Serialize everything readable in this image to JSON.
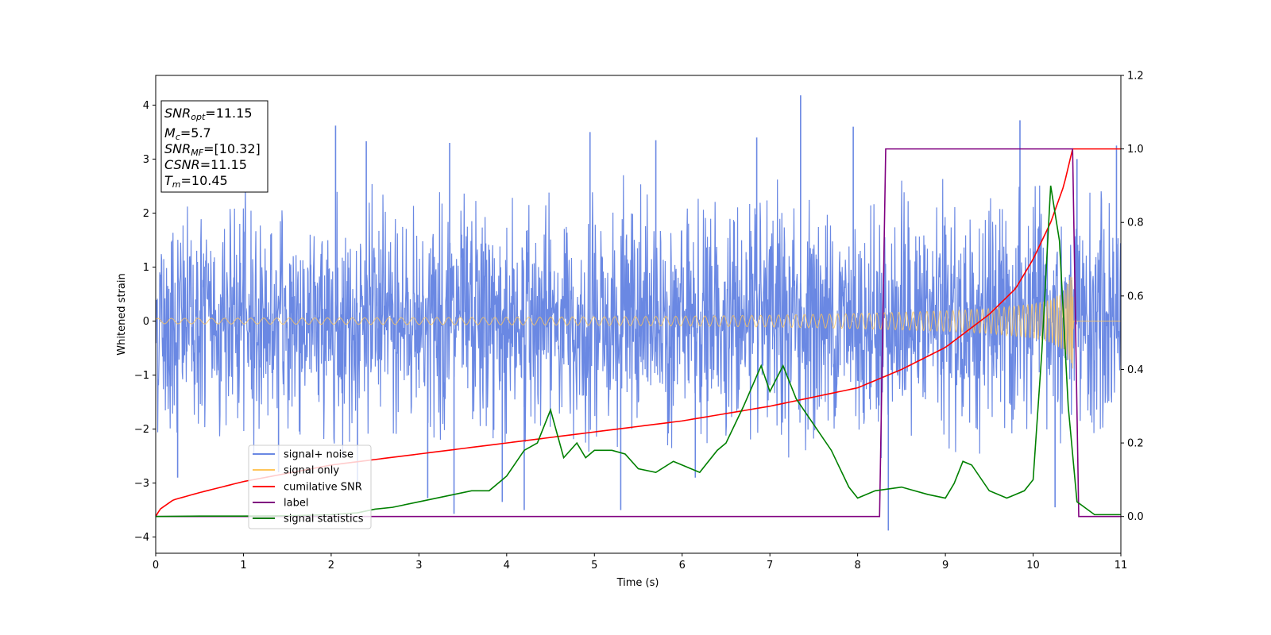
{
  "chart_data": {
    "type": "line",
    "xlabel": "Time (s)",
    "ylabel": "Whitened strain",
    "xlim": [
      0,
      11
    ],
    "ylim": [
      -4.3,
      4.55
    ],
    "ylim_right": [
      -0.1,
      1.2
    ],
    "x_ticks": [
      "0",
      "1",
      "2",
      "3",
      "4",
      "5",
      "6",
      "7",
      "8",
      "9",
      "10",
      "11"
    ],
    "y_ticks": [
      "−4",
      "−3",
      "−2",
      "−1",
      "0",
      "1",
      "2",
      "3",
      "4"
    ],
    "y_ticks_right": [
      "0.0",
      "0.2",
      "0.4",
      "0.6",
      "0.8",
      "1.0",
      "1.2"
    ],
    "legend_position": "lower-left",
    "annotation": {
      "lines": [
        {
          "symbol": "SNR",
          "sub": "opt",
          "value": "=11.15"
        },
        {
          "symbol": "M",
          "sub": "c",
          "value": "=5.7"
        },
        {
          "symbol": "SNR",
          "sub": "MF",
          "value": "=[10.32]"
        },
        {
          "symbol": "CSNR",
          "sub": "",
          "value": "=11.15"
        },
        {
          "symbol": "T",
          "sub": "m",
          "value": "=10.45"
        }
      ]
    },
    "series": [
      {
        "name": "signal+ noise",
        "color": "#6a88e3",
        "axis": "left",
        "kind": "noise",
        "sigma": 1.0,
        "envelope": {
          "x": [
            0,
            2,
            4,
            6,
            8,
            9,
            10,
            10.45,
            11
          ],
          "upper": [
            2.7,
            2.7,
            2.8,
            2.7,
            2.8,
            2.8,
            2.8,
            3.0,
            2.7
          ],
          "lower": [
            -2.5,
            -2.6,
            -2.6,
            -2.5,
            -2.6,
            -2.7,
            -2.7,
            -3.2,
            -2.6
          ]
        },
        "peaks": [
          [
            2.05,
            3.62
          ],
          [
            2.4,
            3.33
          ],
          [
            3.35,
            3.3
          ],
          [
            4.95,
            3.5
          ],
          [
            5.7,
            3.35
          ],
          [
            6.85,
            3.4
          ],
          [
            7.35,
            4.18
          ],
          [
            7.95,
            3.6
          ],
          [
            9.85,
            3.72
          ],
          [
            10.5,
            3.0
          ],
          [
            10.95,
            3.25
          ]
        ],
        "troughs": [
          [
            0.25,
            -2.9
          ],
          [
            1.4,
            -2.8
          ],
          [
            2.3,
            -3.05
          ],
          [
            3.1,
            -3.28
          ],
          [
            3.4,
            -3.57
          ],
          [
            3.95,
            -3.35
          ],
          [
            4.2,
            -3.5
          ],
          [
            5.3,
            -3.5
          ],
          [
            6.15,
            -2.9
          ],
          [
            8.35,
            -3.88
          ],
          [
            10.25,
            -3.45
          ]
        ]
      },
      {
        "name": "signal only",
        "color": "#ffc65a",
        "axis": "left",
        "kind": "chirp",
        "amplitude": {
          "x": [
            0,
            2,
            4,
            6,
            7,
            8,
            9,
            9.5,
            10,
            10.2,
            10.35,
            10.45,
            10.46,
            11
          ],
          "values": [
            0.05,
            0.06,
            0.07,
            0.09,
            0.11,
            0.14,
            0.19,
            0.23,
            0.32,
            0.4,
            0.55,
            0.9,
            0.0,
            0.0
          ]
        }
      },
      {
        "name": "cumilative SNR",
        "color": "#ff0000",
        "axis": "right",
        "x": [
          0,
          0.05,
          0.2,
          0.5,
          1,
          2,
          3,
          4,
          5,
          6,
          7,
          8,
          8.5,
          9,
          9.5,
          9.8,
          10,
          10.2,
          10.35,
          10.45,
          11
        ],
        "values": [
          0.0,
          0.02,
          0.045,
          0.065,
          0.095,
          0.14,
          0.17,
          0.2,
          0.23,
          0.26,
          0.3,
          0.35,
          0.4,
          0.46,
          0.55,
          0.62,
          0.7,
          0.8,
          0.9,
          1.0,
          1.0
        ]
      },
      {
        "name": "label",
        "color": "#800080",
        "axis": "right",
        "x": [
          0,
          8.25,
          8.32,
          10.45,
          10.52,
          11
        ],
        "values": [
          0,
          0,
          1,
          1,
          0,
          0
        ]
      },
      {
        "name": "signal statistics",
        "color": "#008000",
        "axis": "right",
        "x": [
          0,
          0.5,
          1,
          1.5,
          2,
          2.3,
          2.5,
          2.7,
          3,
          3.2,
          3.4,
          3.6,
          3.8,
          4,
          4.2,
          4.35,
          4.5,
          4.65,
          4.8,
          4.9,
          5,
          5.2,
          5.35,
          5.5,
          5.7,
          5.9,
          6,
          6.2,
          6.4,
          6.5,
          6.7,
          6.9,
          7,
          7.15,
          7.3,
          7.5,
          7.7,
          7.9,
          8,
          8.2,
          8.5,
          8.8,
          9,
          9.1,
          9.2,
          9.3,
          9.5,
          9.7,
          9.9,
          10,
          10.1,
          10.2,
          10.3,
          10.4,
          10.5,
          10.7,
          11
        ],
        "values": [
          0.0,
          0.001,
          0.001,
          0.002,
          0.005,
          0.01,
          0.02,
          0.025,
          0.04,
          0.05,
          0.06,
          0.07,
          0.07,
          0.11,
          0.18,
          0.2,
          0.29,
          0.16,
          0.2,
          0.16,
          0.18,
          0.18,
          0.17,
          0.13,
          0.12,
          0.15,
          0.14,
          0.12,
          0.18,
          0.2,
          0.3,
          0.41,
          0.34,
          0.41,
          0.32,
          0.25,
          0.18,
          0.08,
          0.05,
          0.07,
          0.08,
          0.06,
          0.05,
          0.09,
          0.15,
          0.14,
          0.07,
          0.05,
          0.07,
          0.1,
          0.45,
          0.9,
          0.75,
          0.3,
          0.04,
          0.005,
          0.005
        ]
      }
    ]
  }
}
